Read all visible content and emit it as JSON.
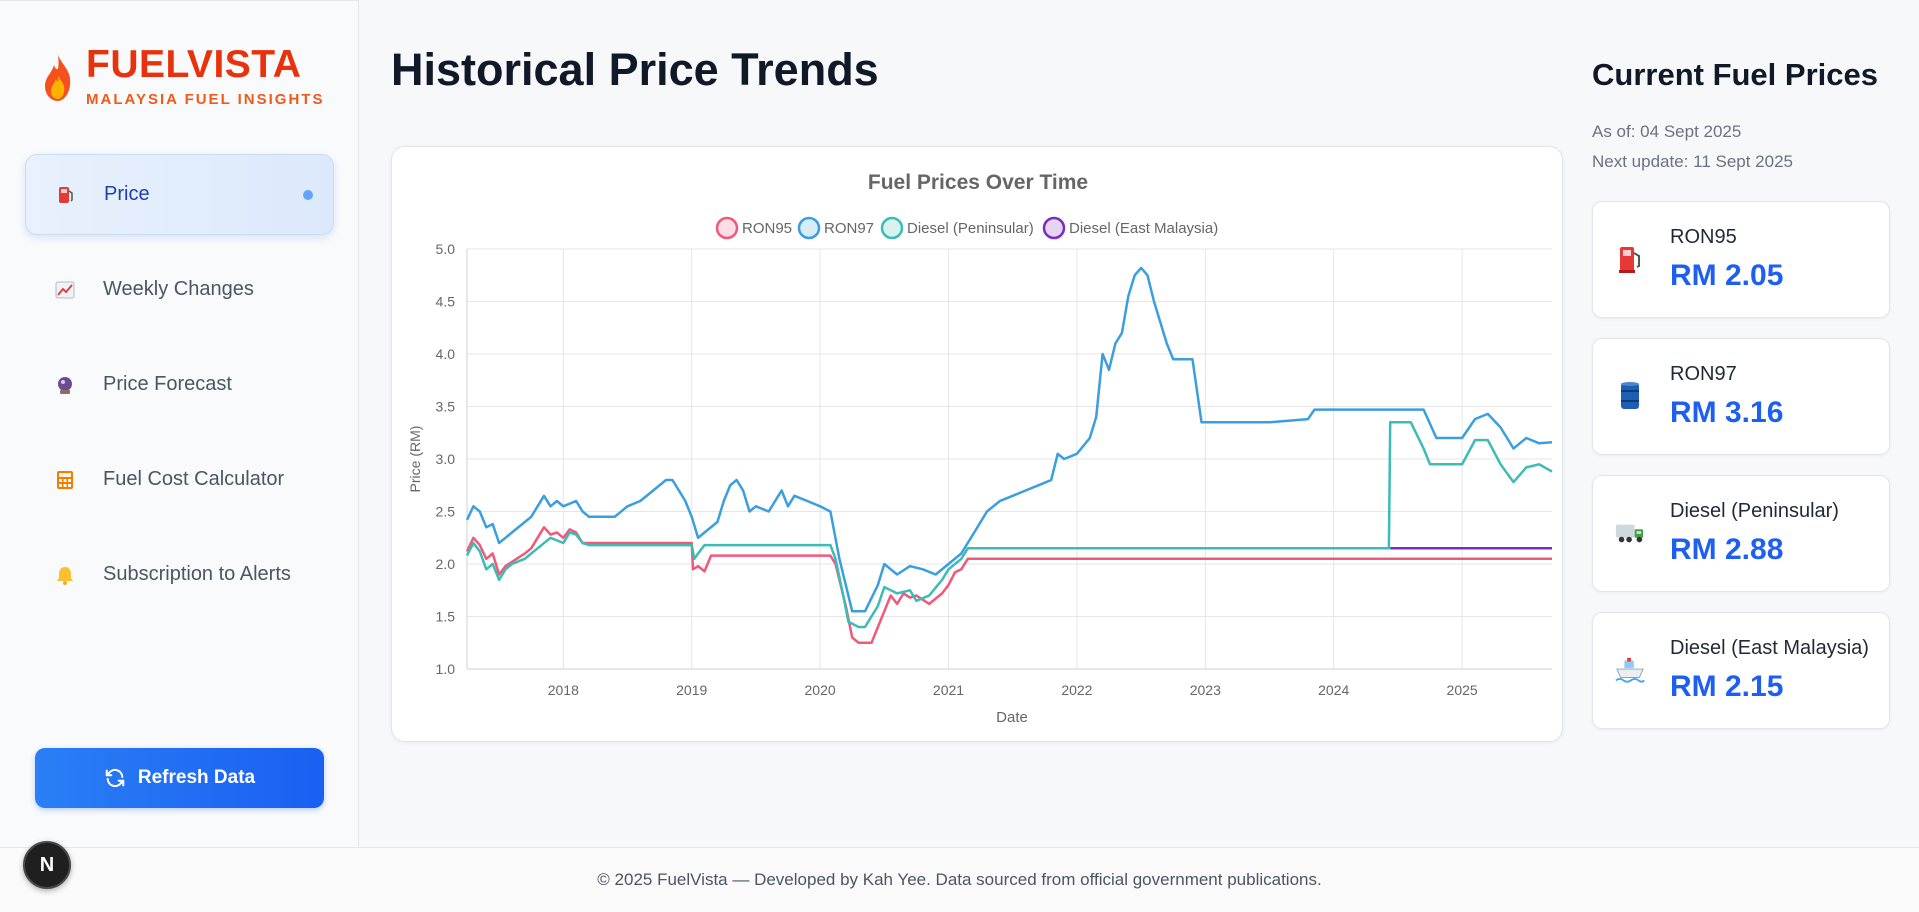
{
  "brand": {
    "title": "FUELVISTA",
    "subtitle": "MALAYSIA FUEL INSIGHTS"
  },
  "nav": [
    {
      "label": "Price",
      "icon": "fuel-pump-icon",
      "active": true
    },
    {
      "label": "Weekly Changes",
      "icon": "chart-increasing-icon"
    },
    {
      "label": "Price Forecast",
      "icon": "crystal-ball-icon"
    },
    {
      "label": "Fuel Cost Calculator",
      "icon": "calculator-icon"
    },
    {
      "label": "Subscription to Alerts",
      "icon": "bell-icon"
    }
  ],
  "refresh_label": "Refresh Data",
  "page_title": "Historical Price Trends",
  "side_panel": {
    "title": "Current Fuel Prices",
    "as_of": "As of: 04 Sept 2025",
    "next_update": "Next update: 11 Sept 2025",
    "prices": [
      {
        "name": "RON95",
        "price": "RM 2.05",
        "icon": "fuel-pump-icon"
      },
      {
        "name": "RON97",
        "price": "RM 3.16",
        "icon": "oil-drum-icon"
      },
      {
        "name": "Diesel (Peninsular)",
        "price": "RM 2.88",
        "icon": "truck-icon"
      },
      {
        "name": "Diesel (East Malaysia)",
        "price": "RM 2.15",
        "icon": "ship-icon"
      }
    ]
  },
  "footer": "© 2025 FuelVista — Developed by Kah Yee. Data sourced from official government publications.",
  "badge": "N",
  "colors": {
    "ron95": "#f0597a",
    "ron97": "#3b9ede",
    "diesel_pen": "#3cbcb4",
    "diesel_east": "#7b2cbf"
  },
  "chart_data": {
    "type": "line",
    "title": "Fuel Prices Over Time",
    "xlabel": "Date",
    "ylabel": "Price (RM)",
    "xlim": [
      2017.25,
      2025.7
    ],
    "ylim": [
      1.0,
      5.0
    ],
    "x_ticks": [
      "2018",
      "2019",
      "2020",
      "2021",
      "2022",
      "2023",
      "2024",
      "2025"
    ],
    "y_ticks": [
      "1.0",
      "1.5",
      "2.0",
      "2.5",
      "3.0",
      "3.5",
      "4.0",
      "4.5",
      "5.0"
    ],
    "grid": true,
    "legend": "top",
    "series": [
      {
        "name": "RON95",
        "color": "#f0597a",
        "points": [
          [
            2017.25,
            2.12
          ],
          [
            2017.3,
            2.25
          ],
          [
            2017.35,
            2.18
          ],
          [
            2017.4,
            2.05
          ],
          [
            2017.45,
            2.1
          ],
          [
            2017.5,
            1.9
          ],
          [
            2017.55,
            1.98
          ],
          [
            2017.6,
            2.02
          ],
          [
            2017.7,
            2.1
          ],
          [
            2017.75,
            2.15
          ],
          [
            2017.8,
            2.25
          ],
          [
            2017.85,
            2.35
          ],
          [
            2017.9,
            2.28
          ],
          [
            2017.95,
            2.3
          ],
          [
            2018.0,
            2.25
          ],
          [
            2018.05,
            2.33
          ],
          [
            2018.1,
            2.3
          ],
          [
            2018.15,
            2.2
          ],
          [
            2018.2,
            2.2
          ],
          [
            2018.4,
            2.2
          ],
          [
            2018.6,
            2.2
          ],
          [
            2018.8,
            2.2
          ],
          [
            2019.0,
            2.2
          ],
          [
            2019.01,
            1.95
          ],
          [
            2019.05,
            1.98
          ],
          [
            2019.1,
            1.93
          ],
          [
            2019.15,
            2.08
          ],
          [
            2019.5,
            2.08
          ],
          [
            2019.9,
            2.08
          ],
          [
            2020.08,
            2.08
          ],
          [
            2020.12,
            2.0
          ],
          [
            2020.2,
            1.6
          ],
          [
            2020.25,
            1.3
          ],
          [
            2020.3,
            1.25
          ],
          [
            2020.4,
            1.25
          ],
          [
            2020.45,
            1.4
          ],
          [
            2020.5,
            1.55
          ],
          [
            2020.55,
            1.7
          ],
          [
            2020.6,
            1.62
          ],
          [
            2020.65,
            1.72
          ],
          [
            2020.7,
            1.68
          ],
          [
            2020.75,
            1.7
          ],
          [
            2020.85,
            1.62
          ],
          [
            2020.95,
            1.72
          ],
          [
            2021.0,
            1.8
          ],
          [
            2021.05,
            1.92
          ],
          [
            2021.1,
            1.95
          ],
          [
            2021.15,
            2.05
          ],
          [
            2022.0,
            2.05
          ],
          [
            2023.0,
            2.05
          ],
          [
            2024.0,
            2.05
          ],
          [
            2025.0,
            2.05
          ],
          [
            2025.7,
            2.05
          ]
        ]
      },
      {
        "name": "RON97",
        "color": "#3b9ede",
        "points": [
          [
            2017.25,
            2.42
          ],
          [
            2017.3,
            2.55
          ],
          [
            2017.35,
            2.5
          ],
          [
            2017.4,
            2.35
          ],
          [
            2017.45,
            2.38
          ],
          [
            2017.5,
            2.2
          ],
          [
            2017.55,
            2.25
          ],
          [
            2017.6,
            2.3
          ],
          [
            2017.7,
            2.4
          ],
          [
            2017.75,
            2.45
          ],
          [
            2017.8,
            2.55
          ],
          [
            2017.85,
            2.65
          ],
          [
            2017.9,
            2.55
          ],
          [
            2017.95,
            2.6
          ],
          [
            2018.0,
            2.55
          ],
          [
            2018.1,
            2.6
          ],
          [
            2018.15,
            2.5
          ],
          [
            2018.2,
            2.45
          ],
          [
            2018.4,
            2.45
          ],
          [
            2018.5,
            2.55
          ],
          [
            2018.6,
            2.6
          ],
          [
            2018.7,
            2.7
          ],
          [
            2018.8,
            2.8
          ],
          [
            2018.85,
            2.8
          ],
          [
            2018.9,
            2.7
          ],
          [
            2018.95,
            2.6
          ],
          [
            2019.0,
            2.45
          ],
          [
            2019.05,
            2.25
          ],
          [
            2019.1,
            2.3
          ],
          [
            2019.2,
            2.4
          ],
          [
            2019.25,
            2.6
          ],
          [
            2019.3,
            2.75
          ],
          [
            2019.35,
            2.8
          ],
          [
            2019.4,
            2.7
          ],
          [
            2019.45,
            2.5
          ],
          [
            2019.5,
            2.55
          ],
          [
            2019.6,
            2.5
          ],
          [
            2019.7,
            2.7
          ],
          [
            2019.75,
            2.55
          ],
          [
            2019.8,
            2.65
          ],
          [
            2019.9,
            2.6
          ],
          [
            2020.0,
            2.55
          ],
          [
            2020.08,
            2.5
          ],
          [
            2020.15,
            2.05
          ],
          [
            2020.2,
            1.8
          ],
          [
            2020.25,
            1.55
          ],
          [
            2020.35,
            1.55
          ],
          [
            2020.45,
            1.8
          ],
          [
            2020.5,
            2.0
          ],
          [
            2020.6,
            1.9
          ],
          [
            2020.7,
            1.98
          ],
          [
            2020.8,
            1.95
          ],
          [
            2020.9,
            1.9
          ],
          [
            2021.0,
            2.0
          ],
          [
            2021.1,
            2.1
          ],
          [
            2021.2,
            2.3
          ],
          [
            2021.3,
            2.5
          ],
          [
            2021.4,
            2.6
          ],
          [
            2021.5,
            2.65
          ],
          [
            2021.6,
            2.7
          ],
          [
            2021.7,
            2.75
          ],
          [
            2021.8,
            2.8
          ],
          [
            2021.85,
            3.05
          ],
          [
            2021.9,
            3.0
          ],
          [
            2022.0,
            3.05
          ],
          [
            2022.1,
            3.2
          ],
          [
            2022.15,
            3.4
          ],
          [
            2022.2,
            4.0
          ],
          [
            2022.25,
            3.85
          ],
          [
            2022.3,
            4.1
          ],
          [
            2022.35,
            4.2
          ],
          [
            2022.4,
            4.55
          ],
          [
            2022.45,
            4.75
          ],
          [
            2022.5,
            4.82
          ],
          [
            2022.55,
            4.75
          ],
          [
            2022.6,
            4.5
          ],
          [
            2022.7,
            4.1
          ],
          [
            2022.75,
            3.95
          ],
          [
            2022.9,
            3.95
          ],
          [
            2022.97,
            3.35
          ],
          [
            2023.5,
            3.35
          ],
          [
            2023.8,
            3.38
          ],
          [
            2023.85,
            3.47
          ],
          [
            2024.0,
            3.47
          ],
          [
            2024.7,
            3.47
          ],
          [
            2024.8,
            3.2
          ],
          [
            2025.0,
            3.2
          ],
          [
            2025.1,
            3.38
          ],
          [
            2025.2,
            3.43
          ],
          [
            2025.3,
            3.3
          ],
          [
            2025.4,
            3.1
          ],
          [
            2025.5,
            3.2
          ],
          [
            2025.6,
            3.15
          ],
          [
            2025.7,
            3.16
          ]
        ]
      },
      {
        "name": "Diesel (Peninsular)",
        "color": "#3cbcb4",
        "points": [
          [
            2017.25,
            2.08
          ],
          [
            2017.3,
            2.2
          ],
          [
            2017.35,
            2.12
          ],
          [
            2017.4,
            1.95
          ],
          [
            2017.45,
            2.0
          ],
          [
            2017.5,
            1.85
          ],
          [
            2017.55,
            1.95
          ],
          [
            2017.6,
            2.0
          ],
          [
            2017.7,
            2.05
          ],
          [
            2017.8,
            2.15
          ],
          [
            2017.9,
            2.25
          ],
          [
            2018.0,
            2.2
          ],
          [
            2018.05,
            2.3
          ],
          [
            2018.1,
            2.28
          ],
          [
            2018.15,
            2.2
          ],
          [
            2018.2,
            2.18
          ],
          [
            2018.5,
            2.18
          ],
          [
            2018.8,
            2.18
          ],
          [
            2019.0,
            2.18
          ],
          [
            2019.02,
            2.05
          ],
          [
            2019.05,
            2.1
          ],
          [
            2019.1,
            2.18
          ],
          [
            2019.5,
            2.18
          ],
          [
            2020.0,
            2.18
          ],
          [
            2020.08,
            2.18
          ],
          [
            2020.12,
            2.05
          ],
          [
            2020.18,
            1.7
          ],
          [
            2020.22,
            1.45
          ],
          [
            2020.3,
            1.4
          ],
          [
            2020.35,
            1.4
          ],
          [
            2020.45,
            1.6
          ],
          [
            2020.5,
            1.78
          ],
          [
            2020.6,
            1.72
          ],
          [
            2020.7,
            1.75
          ],
          [
            2020.75,
            1.65
          ],
          [
            2020.85,
            1.7
          ],
          [
            2020.95,
            1.85
          ],
          [
            2021.0,
            1.95
          ],
          [
            2021.1,
            2.05
          ],
          [
            2021.15,
            2.15
          ],
          [
            2022.0,
            2.15
          ],
          [
            2023.0,
            2.15
          ],
          [
            2024.0,
            2.15
          ],
          [
            2024.43,
            2.15
          ],
          [
            2024.44,
            3.35
          ],
          [
            2024.6,
            3.35
          ],
          [
            2024.7,
            3.1
          ],
          [
            2024.75,
            2.95
          ],
          [
            2025.0,
            2.95
          ],
          [
            2025.1,
            3.18
          ],
          [
            2025.2,
            3.18
          ],
          [
            2025.3,
            2.95
          ],
          [
            2025.4,
            2.78
          ],
          [
            2025.5,
            2.92
          ],
          [
            2025.6,
            2.95
          ],
          [
            2025.7,
            2.88
          ]
        ]
      },
      {
        "name": "Diesel (East Malaysia)",
        "color": "#7b2cbf",
        "points": [
          [
            2024.44,
            2.15
          ],
          [
            2025.0,
            2.15
          ],
          [
            2025.7,
            2.15
          ]
        ]
      }
    ]
  }
}
